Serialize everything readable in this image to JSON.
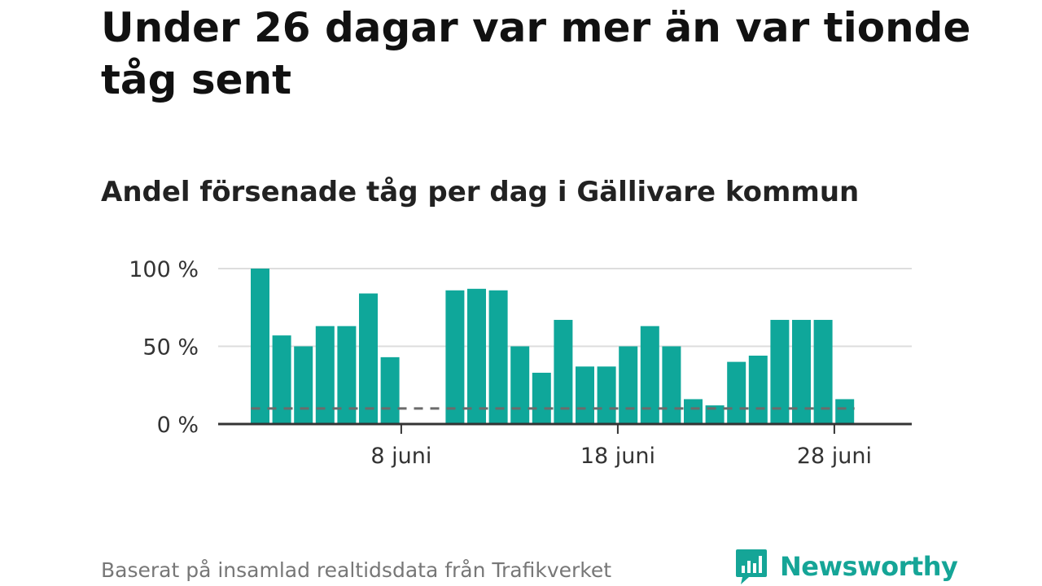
{
  "headline": "Under 26 dagar var mer än var tionde tåg sent",
  "subtitle": "Andel försenade tåg per dag i Gällivare kommun",
  "source": "Baserat på insamlad realtidsdata från Trafikverket",
  "brand": {
    "name": "Newsworthy",
    "color": "#15a597"
  },
  "chart_data": {
    "type": "bar",
    "title": "Andel försenade tåg per dag i Gällivare kommun",
    "x": [
      "2024-06-01",
      "2024-06-02",
      "2024-06-03",
      "2024-06-04",
      "2024-06-05",
      "2024-06-06",
      "2024-06-07",
      "2024-06-08",
      "2024-06-09",
      "2024-06-10",
      "2024-06-11",
      "2024-06-12",
      "2024-06-13",
      "2024-06-14",
      "2024-06-15",
      "2024-06-16",
      "2024-06-17",
      "2024-06-18",
      "2024-06-19",
      "2024-06-20",
      "2024-06-21",
      "2024-06-22",
      "2024-06-23",
      "2024-06-24",
      "2024-06-25",
      "2024-06-26",
      "2024-06-27",
      "2024-06-28",
      "2024-06-29"
    ],
    "values": [
      100,
      57,
      50,
      63,
      63,
      84,
      43,
      null,
      null,
      86,
      87,
      86,
      50,
      33,
      67,
      37,
      37,
      50,
      63,
      50,
      16,
      12,
      40,
      44,
      67,
      67,
      67,
      16,
      null
    ],
    "threshold": 10,
    "ylim": [
      0,
      100
    ],
    "yticks": [
      0,
      50,
      100
    ],
    "ytick_labels": [
      "0 %",
      "50 %",
      "100 %"
    ],
    "xticks": [
      {
        "x": "2024-06-08",
        "label": "8 juni"
      },
      {
        "x": "2024-06-18",
        "label": "18 juni"
      },
      {
        "x": "2024-06-28",
        "label": "28 juni"
      }
    ],
    "bar_color": "#0fa79a",
    "threshold_color": "#6b6b6b",
    "grid": true
  }
}
